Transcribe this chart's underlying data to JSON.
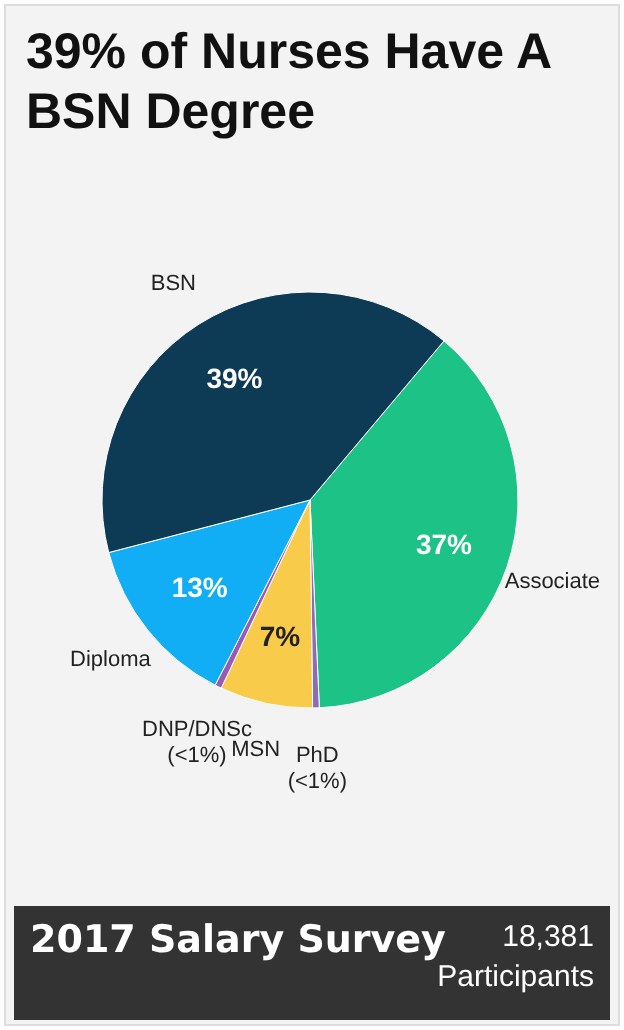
{
  "chart_data": {
    "type": "pie",
    "title": "39% of Nurses Have A BSN Degree",
    "categories": [
      "Associate",
      "PhD (<1%)",
      "MSN",
      "DNP/DNSc (<1%)",
      "Diploma",
      "BSN"
    ],
    "values": [
      37,
      0.5,
      7,
      0.5,
      13,
      39
    ],
    "colors": [
      "#1dc386",
      "#8e6bb8",
      "#f9cb4a",
      "#9b59b6",
      "#11aef5",
      "#0d3b55"
    ],
    "value_labels": [
      "37%",
      null,
      "7%",
      null,
      "13%",
      "39%"
    ],
    "annotations": [
      "2017 Salary Survey",
      "18,381 Participants"
    ]
  }
}
